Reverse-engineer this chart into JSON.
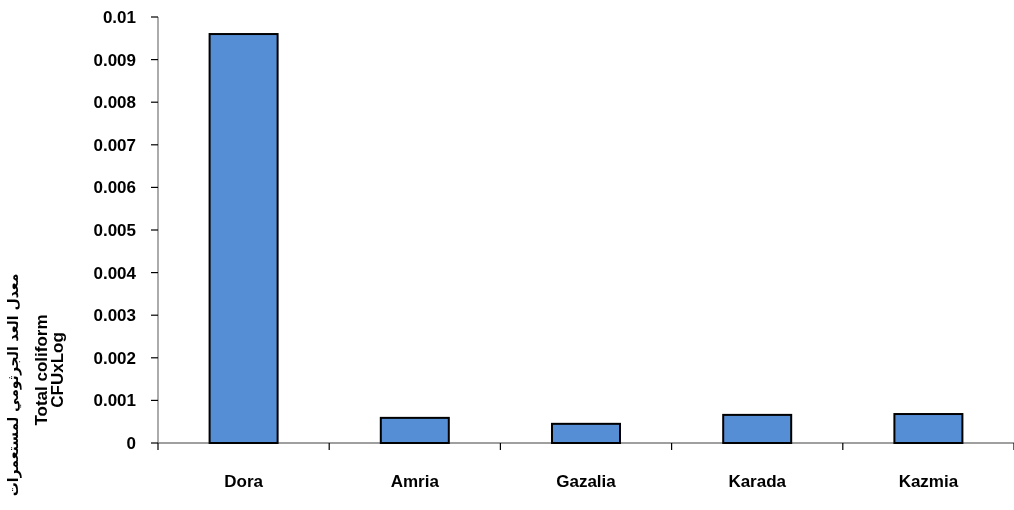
{
  "chart_data": {
    "type": "bar",
    "categories": [
      "Dora",
      "Amria",
      "Gazalia",
      "Karada",
      "Kazmia"
    ],
    "values": [
      0.0096,
      0.00059,
      0.00045,
      0.00066,
      0.00068
    ],
    "color": "#558ed5",
    "ylabel": "Total coliform CFUxLog",
    "annotations": [
      "معدل العد الجرثومي لمستعمرات"
    ],
    "ylim": [
      0,
      0.01
    ],
    "yticks": [
      0,
      0.001,
      0.002,
      0.003,
      0.004,
      0.005,
      0.006,
      0.007,
      0.008,
      0.009,
      0.01
    ],
    "grid": false
  }
}
